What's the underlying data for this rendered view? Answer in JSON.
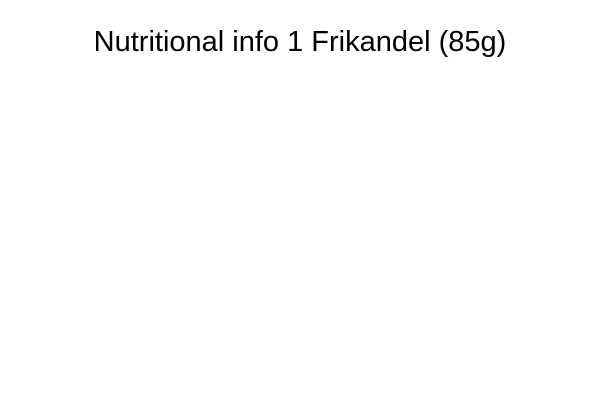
{
  "chart_data": {
    "type": "pie",
    "title": "Nutritional info 1 Frikandel (85g)",
    "categories": [],
    "values": []
  }
}
